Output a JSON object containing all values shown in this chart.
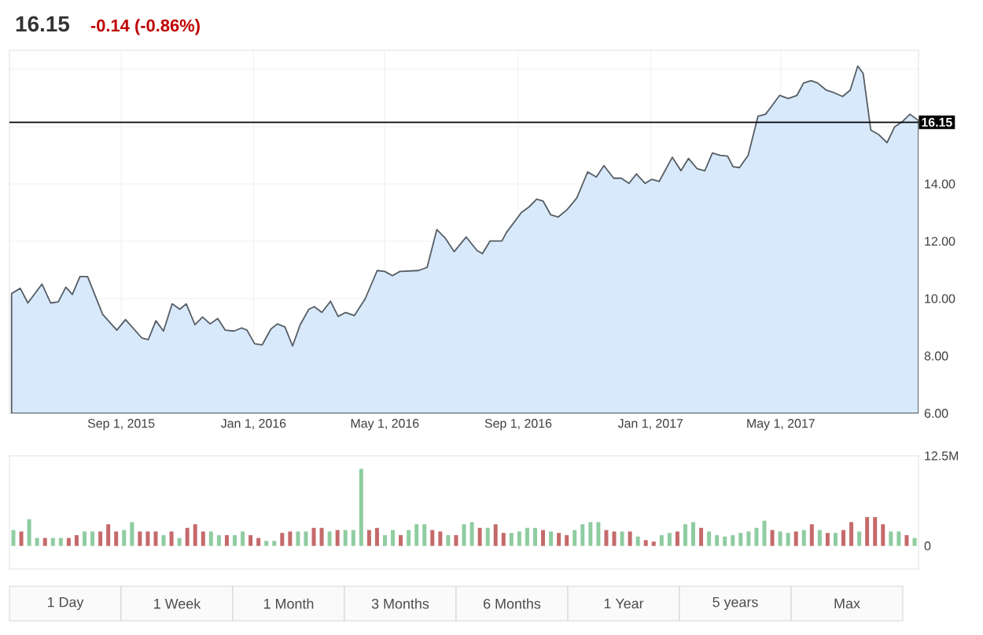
{
  "chart_data": [
    {
      "type": "area",
      "title": "16.15",
      "subtitle": "-0.14 (-0.86%)",
      "series": [
        {
          "color": "#d8e9fb",
          "x": [
            "2015-05-23",
            "2015-05-31",
            "2015-06-07",
            "2015-06-20",
            "2015-06-28",
            "2015-07-05",
            "2015-07-12",
            "2015-07-18",
            "2015-07-25",
            "2015-08-01",
            "2015-08-15",
            "2015-08-28",
            "2015-09-05",
            "2015-09-20",
            "2015-09-26",
            "2015-10-03",
            "2015-10-10",
            "2015-10-18",
            "2015-10-25",
            "2015-10-31",
            "2015-11-08",
            "2015-11-15",
            "2015-11-22",
            "2015-11-29",
            "2015-12-06",
            "2015-12-14",
            "2015-12-21",
            "2015-12-26",
            "2016-01-02",
            "2016-01-09",
            "2016-01-17",
            "2016-01-23",
            "2016-01-30",
            "2016-02-06",
            "2016-02-13",
            "2016-02-21",
            "2016-02-26",
            "2016-03-04",
            "2016-03-12",
            "2016-03-19",
            "2016-03-26",
            "2016-04-03",
            "2016-04-13",
            "2016-04-24",
            "2016-05-01",
            "2016-05-08",
            "2016-05-15",
            "2016-06-01",
            "2016-06-09",
            "2016-06-18",
            "2016-06-26",
            "2016-07-04",
            "2016-07-15",
            "2016-07-25",
            "2016-07-30",
            "2016-08-06",
            "2016-08-17",
            "2016-08-21",
            "2016-09-04",
            "2016-09-11",
            "2016-09-18",
            "2016-09-24",
            "2016-10-01",
            "2016-10-08",
            "2016-10-16",
            "2016-10-25",
            "2016-11-04",
            "2016-11-12",
            "2016-11-19",
            "2016-11-28",
            "2016-12-05",
            "2016-12-12",
            "2016-12-19",
            "2016-12-27",
            "2017-01-02",
            "2017-01-09",
            "2017-01-21",
            "2017-01-29",
            "2017-02-05",
            "2017-02-13",
            "2017-02-20",
            "2017-02-27",
            "2017-03-06",
            "2017-03-13",
            "2017-03-18",
            "2017-03-24",
            "2017-04-01",
            "2017-04-10",
            "2017-04-17",
            "2017-04-22",
            "2017-04-30",
            "2017-05-08",
            "2017-05-16",
            "2017-05-22",
            "2017-05-29",
            "2017-06-04",
            "2017-06-12",
            "2017-06-18",
            "2017-06-27",
            "2017-07-04",
            "2017-07-11",
            "2017-07-16",
            "2017-07-23",
            "2017-07-30",
            "2017-08-07",
            "2017-08-14",
            "2017-08-21",
            "2017-08-28",
            "2017-09-05"
          ],
          "values": [
            10.18,
            10.36,
            9.85,
            10.51,
            9.85,
            9.89,
            10.4,
            10.15,
            10.77,
            10.77,
            9.45,
            8.9,
            9.27,
            8.63,
            8.57,
            9.23,
            8.87,
            9.82,
            9.63,
            9.82,
            9.09,
            9.36,
            9.12,
            9.31,
            8.9,
            8.87,
            8.98,
            8.9,
            8.43,
            8.39,
            8.94,
            9.12,
            9.01,
            8.35,
            9.09,
            9.63,
            9.72,
            9.52,
            9.91,
            9.38,
            9.52,
            9.41,
            10.0,
            10.98,
            10.95,
            10.8,
            10.95,
            10.98,
            11.09,
            12.41,
            12.1,
            11.64,
            12.15,
            11.68,
            11.57,
            12.01,
            12.01,
            12.3,
            13.01,
            13.2,
            13.47,
            13.4,
            12.92,
            12.85,
            13.1,
            13.51,
            14.42,
            14.24,
            14.64,
            14.2,
            14.2,
            14.02,
            14.35,
            14.02,
            14.16,
            14.09,
            14.93,
            14.46,
            14.89,
            14.53,
            14.46,
            15.08,
            15.0,
            14.97,
            14.6,
            14.57,
            15.0,
            16.36,
            16.43,
            16.68,
            17.09,
            16.98,
            17.09,
            17.52,
            17.6,
            17.52,
            17.27,
            17.2,
            17.05,
            17.27,
            18.11,
            17.85,
            15.88,
            15.73,
            15.44,
            15.99,
            16.17,
            16.43,
            16.21
          ]
        }
      ],
      "xlim": [
        "2015-05-21",
        "2017-09-05"
      ],
      "xticks": [
        {
          "value": "2015-09-01",
          "label": "Sep 1, 2015"
        },
        {
          "value": "2016-01-01",
          "label": "Jan 1, 2016"
        },
        {
          "value": "2016-05-01",
          "label": "May 1, 2016"
        },
        {
          "value": "2016-09-01",
          "label": "Sep 1, 2016"
        },
        {
          "value": "2017-01-01",
          "label": "Jan 1, 2017"
        },
        {
          "value": "2017-05-01",
          "label": "May 1, 2017"
        }
      ],
      "ylim": [
        6,
        18.66
      ],
      "yticks": [
        {
          "value": 6,
          "label": "6.00"
        },
        {
          "value": 8,
          "label": "8.00"
        },
        {
          "value": 10,
          "label": "10.00"
        },
        {
          "value": 12,
          "label": "12.00"
        },
        {
          "value": 14,
          "label": "14.00"
        },
        {
          "value": 16,
          "label": null
        },
        {
          "value": 18,
          "label": null
        }
      ],
      "ref_lines": [
        {
          "axis": "y",
          "value": 16.15,
          "label": "16.15",
          "color": "#000000"
        }
      ],
      "grid": true,
      "marker": "none",
      "line_style": "solid"
    },
    {
      "type": "bar",
      "tick_labels": "y",
      "categories": [
        null,
        null,
        null,
        null,
        null,
        null,
        null,
        null,
        null,
        null,
        null,
        null,
        null,
        null,
        null,
        null,
        null,
        null,
        null,
        null,
        null,
        null,
        null,
        null,
        null,
        null,
        null,
        null,
        null,
        null,
        null,
        null,
        null,
        null,
        null,
        null,
        null,
        null,
        null,
        null,
        null,
        null,
        null,
        null,
        null,
        null,
        null,
        null,
        null,
        null,
        null,
        null,
        null,
        null,
        null,
        null,
        null,
        null,
        null,
        null,
        null,
        null,
        null,
        null,
        null,
        null,
        null,
        null,
        null,
        null,
        null,
        null,
        null,
        null,
        null,
        null,
        null,
        null,
        null,
        null,
        null,
        null,
        null,
        null,
        null,
        null,
        null,
        null,
        null,
        null,
        null,
        null,
        null,
        null,
        null,
        null,
        null,
        null,
        null,
        null,
        null,
        null,
        null,
        null,
        null,
        null,
        null,
        null,
        null,
        null,
        null,
        null,
        null,
        null,
        null
      ],
      "values": [
        2.2,
        2.0,
        3.7,
        1.1,
        1.1,
        1.1,
        1.1,
        1.1,
        1.5,
        2.0,
        2.0,
        2.0,
        3.0,
        2.0,
        2.2,
        3.3,
        2.0,
        2.0,
        2.0,
        1.5,
        2.0,
        1.1,
        2.5,
        3.0,
        2.0,
        2.0,
        1.5,
        1.5,
        1.5,
        2.0,
        1.5,
        1.1,
        0.7,
        0.7,
        1.8,
        2.0,
        2.0,
        2.0,
        2.5,
        2.5,
        2.0,
        2.2,
        2.2,
        2.2,
        10.7,
        2.2,
        2.5,
        1.5,
        2.2,
        1.5,
        2.2,
        3.0,
        3.0,
        2.2,
        2.0,
        1.5,
        1.5,
        3.0,
        3.3,
        2.5,
        2.5,
        3.0,
        1.8,
        1.8,
        2.0,
        2.5,
        2.5,
        2.2,
        2.0,
        1.8,
        1.5,
        2.2,
        3.0,
        3.3,
        3.3,
        2.2,
        2.0,
        2.0,
        2.0,
        1.3,
        0.8,
        0.6,
        1.5,
        1.8,
        2.0,
        3.0,
        3.3,
        2.5,
        2.0,
        1.5,
        1.3,
        1.5,
        1.8,
        2.0,
        2.5,
        3.5,
        2.2,
        2.0,
        1.8,
        2.0,
        2.2,
        3.0,
        2.2,
        1.8,
        1.8,
        2.2,
        3.3,
        2.0,
        4.0,
        4.0,
        3.0,
        2.0,
        2.0,
        1.5,
        1.1
      ],
      "colors": [
        "#8fcca0",
        "#c46a6a",
        "#8fcca0",
        "#8fcca0",
        "#c46a6a",
        "#8fcca0",
        "#8fcca0",
        "#c46a6a",
        "#c46a6a",
        "#8fcca0",
        "#8fcca0",
        "#c46a6a",
        "#c46a6a",
        "#c46a6a",
        "#8fcca0",
        "#8fcca0",
        "#c46a6a",
        "#c46a6a",
        "#c46a6a",
        "#8fcca0",
        "#c46a6a",
        "#8fcca0",
        "#c46a6a",
        "#c46a6a",
        "#c46a6a",
        "#8fcca0",
        "#8fcca0",
        "#c46a6a",
        "#8fcca0",
        "#8fcca0",
        "#c46a6a",
        "#c46a6a",
        "#8fcca0",
        "#8fcca0",
        "#c46a6a",
        "#c46a6a",
        "#8fcca0",
        "#8fcca0",
        "#c46a6a",
        "#c46a6a",
        "#8fcca0",
        "#c46a6a",
        "#8fcca0",
        "#8fcca0",
        "#8fcca0",
        "#c46a6a",
        "#c46a6a",
        "#8fcca0",
        "#8fcca0",
        "#c46a6a",
        "#8fcca0",
        "#8fcca0",
        "#8fcca0",
        "#c46a6a",
        "#c46a6a",
        "#8fcca0",
        "#c46a6a",
        "#8fcca0",
        "#8fcca0",
        "#c46a6a",
        "#8fcca0",
        "#c46a6a",
        "#c46a6a",
        "#8fcca0",
        "#8fcca0",
        "#8fcca0",
        "#8fcca0",
        "#c46a6a",
        "#8fcca0",
        "#c46a6a",
        "#c46a6a",
        "#8fcca0",
        "#8fcca0",
        "#8fcca0",
        "#8fcca0",
        "#c46a6a",
        "#c46a6a",
        "#8fcca0",
        "#c46a6a",
        "#8fcca0",
        "#c46a6a",
        "#c46a6a",
        "#8fcca0",
        "#8fcca0",
        "#c46a6a",
        "#8fcca0",
        "#8fcca0",
        "#c46a6a",
        "#8fcca0",
        "#8fcca0",
        "#8fcca0",
        "#8fcca0",
        "#8fcca0",
        "#8fcca0",
        "#8fcca0",
        "#8fcca0",
        "#c46a6a",
        "#8fcca0",
        "#8fcca0",
        "#c46a6a",
        "#8fcca0",
        "#c46a6a",
        "#8fcca0",
        "#c46a6a",
        "#8fcca0",
        "#c46a6a",
        "#c46a6a",
        "#8fcca0",
        "#c46a6a",
        "#c46a6a",
        "#c46a6a",
        "#8fcca0",
        "#8fcca0",
        "#c46a6a",
        "#8fcca0"
      ],
      "ylim": [
        -3.2,
        12.5
      ],
      "yticks": [
        {
          "value": 0,
          "label": "0"
        },
        {
          "value": 12.5,
          "label": "12.5M"
        }
      ],
      "annotations": [
        "1 Day",
        "1 Week",
        "1 Month",
        "3 Months",
        "6 Months",
        "1 Year",
        "5 years",
        "Max"
      ]
    }
  ]
}
